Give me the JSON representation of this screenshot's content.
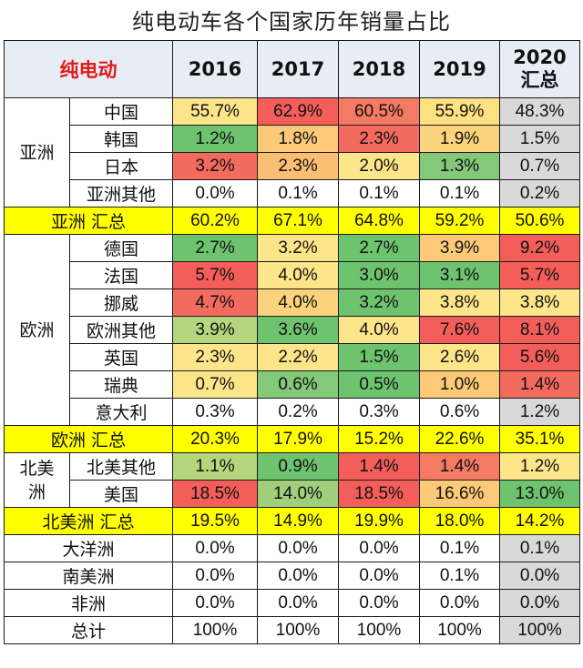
{
  "title": "纯电动车各个国家历年销量占比",
  "corner_label": "纯电动",
  "years": [
    "2016",
    "2017",
    "2018",
    "2019"
  ],
  "year_2020_line1": "2020",
  "year_2020_line2": "汇总",
  "sections": [
    {
      "region": "亚洲",
      "rows": [
        {
          "label": "中国",
          "values": [
            "55.7%",
            "62.9%",
            "60.5%",
            "55.9%",
            "48.3%"
          ],
          "colors": [
            "#fde58a",
            "#f35e5b",
            "#f57a64",
            "#fde182",
            "#d9d9d9"
          ]
        },
        {
          "label": "韩国",
          "values": [
            "1.2%",
            "1.8%",
            "2.3%",
            "1.9%",
            "1.5%"
          ],
          "colors": [
            "#6ec36e",
            "#fbc978",
            "#f36a5e",
            "#fbd37d",
            "#d9d9d9"
          ]
        },
        {
          "label": "日本",
          "values": [
            "3.2%",
            "2.3%",
            "2.0%",
            "1.3%",
            "0.7%"
          ],
          "colors": [
            "#f36a5e",
            "#fbbf73",
            "#fde58a",
            "#84c87a",
            "#d9d9d9"
          ]
        },
        {
          "label": "亚洲其他",
          "values": [
            "0.0%",
            "0.1%",
            "0.1%",
            "0.1%",
            "0.2%"
          ],
          "colors": [
            "#ffffff",
            "#ffffff",
            "#ffffff",
            "#ffffff",
            "#d9d9d9"
          ]
        }
      ],
      "sum_label": "亚洲 汇总",
      "sum_values": [
        "60.2%",
        "67.1%",
        "64.8%",
        "59.2%",
        "50.6%"
      ]
    },
    {
      "region": "欧洲",
      "rows": [
        {
          "label": "德国",
          "values": [
            "2.7%",
            "3.2%",
            "2.7%",
            "3.9%",
            "9.2%"
          ],
          "colors": [
            "#6ec36e",
            "#fde58a",
            "#6ec36e",
            "#fbc978",
            "#f35e5b"
          ]
        },
        {
          "label": "法国",
          "values": [
            "5.7%",
            "4.0%",
            "3.0%",
            "3.1%",
            "5.7%"
          ],
          "colors": [
            "#f35e5b",
            "#fde58a",
            "#6ec36e",
            "#6ec36e",
            "#f35e5b"
          ]
        },
        {
          "label": "挪威",
          "values": [
            "4.7%",
            "4.0%",
            "3.2%",
            "3.8%",
            "3.8%"
          ],
          "colors": [
            "#f36a5e",
            "#fbd37d",
            "#6ec36e",
            "#fde58a",
            "#fde58a"
          ]
        },
        {
          "label": "欧洲其他",
          "values": [
            "3.9%",
            "3.6%",
            "4.0%",
            "7.6%",
            "8.1%"
          ],
          "colors": [
            "#b5d67d",
            "#6ec36e",
            "#fde58a",
            "#f35e5b",
            "#f35e5b"
          ]
        },
        {
          "label": "英国",
          "values": [
            "2.3%",
            "2.2%",
            "1.5%",
            "2.6%",
            "5.6%"
          ],
          "colors": [
            "#fde58a",
            "#fde58a",
            "#6ec36e",
            "#fde58a",
            "#f35e5b"
          ]
        },
        {
          "label": "瑞典",
          "values": [
            "0.7%",
            "0.6%",
            "0.5%",
            "1.0%",
            "1.4%"
          ],
          "colors": [
            "#fde58a",
            "#84c87a",
            "#6ec36e",
            "#fbc978",
            "#f36a5e"
          ]
        },
        {
          "label": "意大利",
          "values": [
            "0.3%",
            "0.2%",
            "0.3%",
            "0.6%",
            "1.2%"
          ],
          "colors": [
            "#ffffff",
            "#ffffff",
            "#ffffff",
            "#ffffff",
            "#d9d9d9"
          ]
        }
      ],
      "sum_label": "欧洲 汇总",
      "sum_values": [
        "20.3%",
        "17.9%",
        "15.2%",
        "22.6%",
        "35.1%"
      ]
    },
    {
      "region": "北美洲",
      "region_line1": "北美",
      "region_line2": "洲",
      "rows": [
        {
          "label": "北美其他",
          "values": [
            "1.1%",
            "0.9%",
            "1.4%",
            "1.4%",
            "1.2%"
          ],
          "colors": [
            "#b5d67d",
            "#6ec36e",
            "#f35e5b",
            "#f57a64",
            "#fde58a"
          ]
        },
        {
          "label": "美国",
          "values": [
            "18.5%",
            "14.0%",
            "18.5%",
            "16.6%",
            "13.0%"
          ],
          "colors": [
            "#f35e5b",
            "#9fcf7b",
            "#f35e5b",
            "#fbc978",
            "#6ec36e"
          ]
        }
      ],
      "sum_label": "北美洲 汇总",
      "sum_values": [
        "19.5%",
        "14.9%",
        "19.9%",
        "18.0%",
        "14.2%"
      ]
    }
  ],
  "tail_rows": [
    {
      "label": "大洋洲",
      "values": [
        "0.0%",
        "0.0%",
        "0.0%",
        "0.1%",
        "0.1%"
      ]
    },
    {
      "label": "南美洲",
      "values": [
        "0.0%",
        "0.0%",
        "0.0%",
        "0.1%",
        "0.0%"
      ]
    },
    {
      "label": "非洲",
      "values": [
        "0.0%",
        "0.0%",
        "0.0%",
        "0.0%",
        "0.0%"
      ]
    }
  ],
  "total_label": "总计",
  "total_values": [
    "100%",
    "100%",
    "100%",
    "100%",
    "100%"
  ]
}
